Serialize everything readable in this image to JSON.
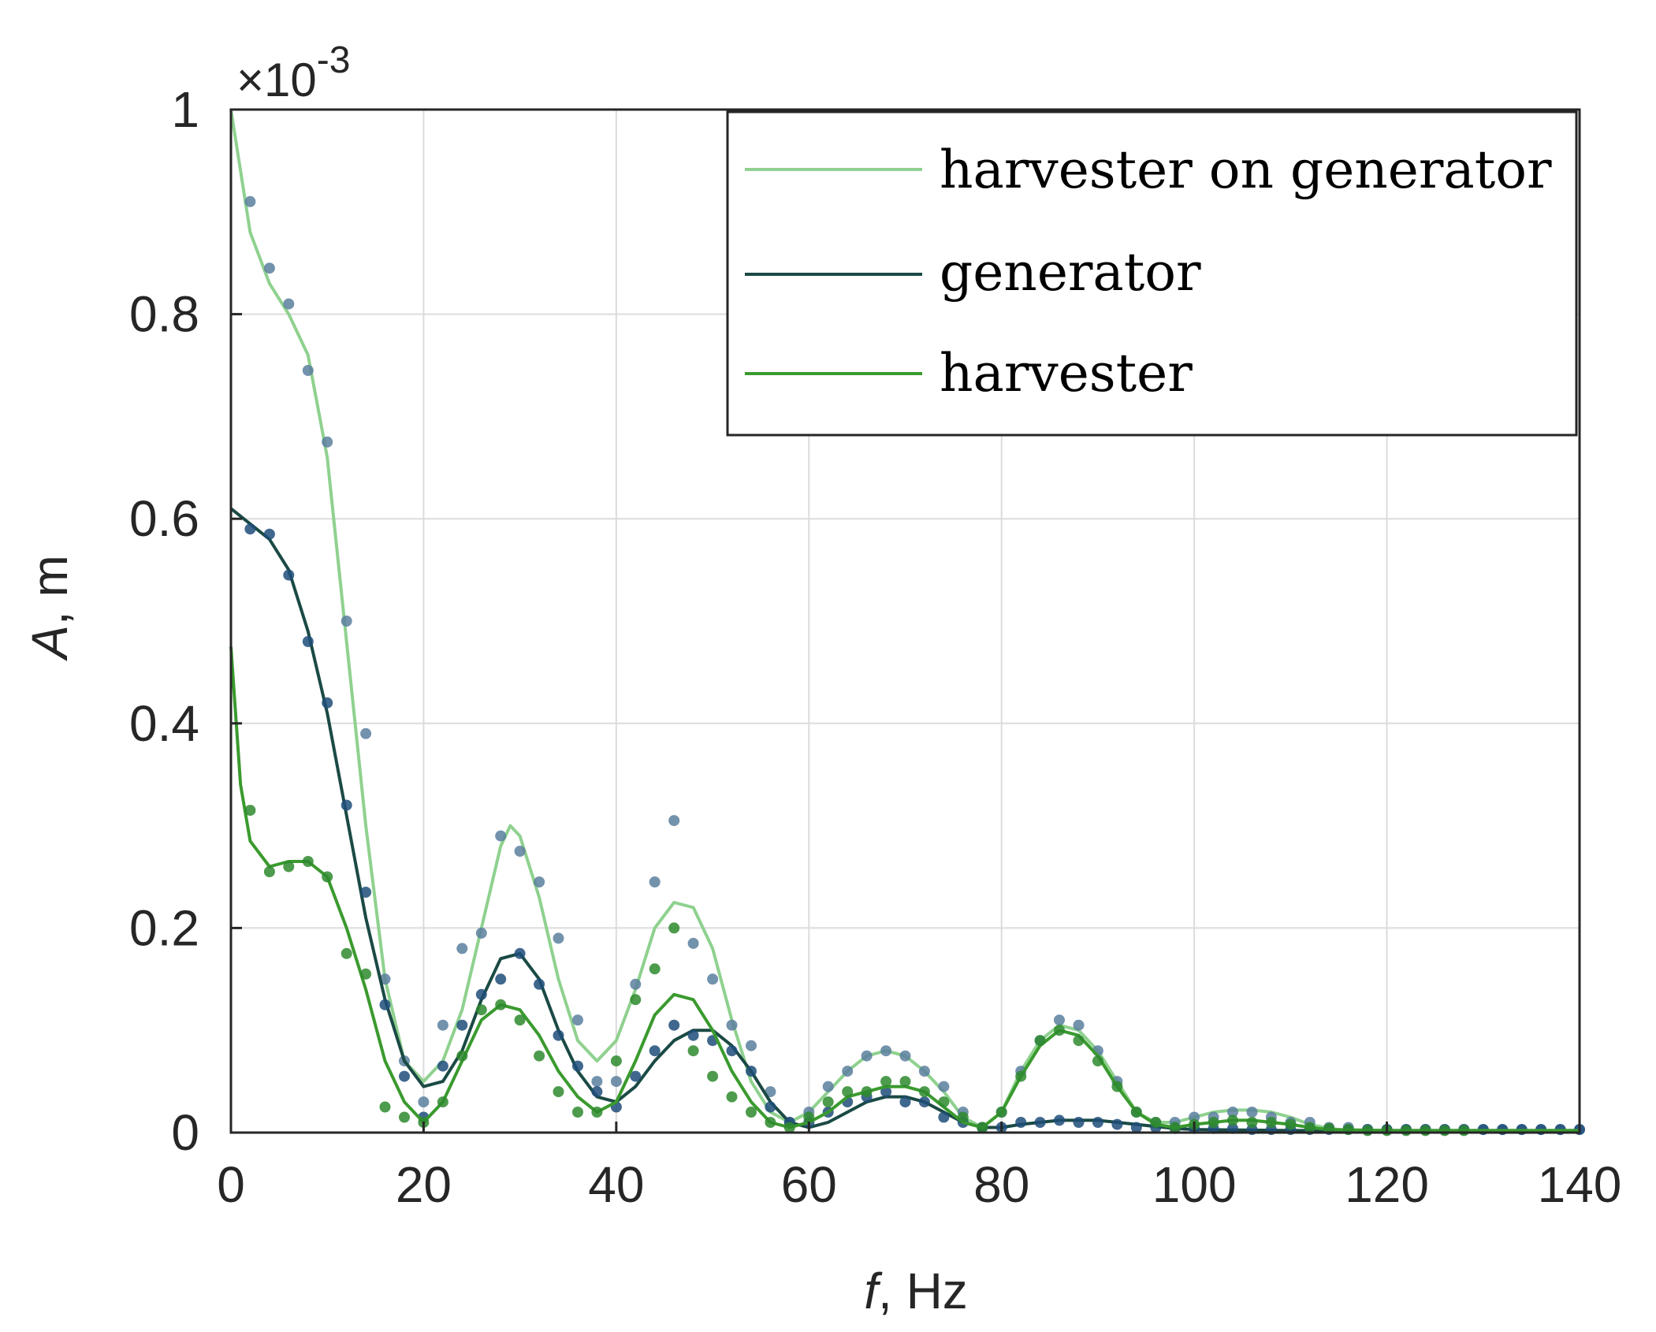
{
  "chart_data": {
    "type": "line",
    "title": "",
    "xlabel_italic": "f",
    "xlabel_rest": ", Hz",
    "ylabel_italic": "A",
    "ylabel_rest": ", m",
    "y_multiplier_prefix": "×10",
    "y_multiplier_exponent": "-3",
    "xlim": [
      0,
      140
    ],
    "ylim": [
      0,
      1
    ],
    "x_ticks": [
      0,
      20,
      40,
      60,
      80,
      100,
      120,
      140
    ],
    "y_ticks": [
      0,
      0.2,
      0.4,
      0.6,
      0.8,
      1
    ],
    "y_tick_labels": [
      "0",
      "0.2",
      "0.4",
      "0.6",
      "0.8",
      "1"
    ],
    "grid": true,
    "legend_position": "top-right",
    "series": [
      {
        "name": "harvester on generator",
        "color": "#8fd18f",
        "marker_color": "#5a7f9e",
        "curve": {
          "x": [
            0,
            2,
            4,
            6,
            8,
            10,
            12,
            14,
            16,
            18,
            20,
            22,
            24,
            26,
            28,
            29,
            30,
            32,
            34,
            36,
            38,
            40,
            42,
            44,
            46,
            48,
            50,
            52,
            54,
            56,
            58,
            60,
            62,
            64,
            66,
            68,
            70,
            72,
            74,
            76,
            78,
            80,
            82,
            84,
            86,
            88,
            90,
            92,
            94,
            96,
            98,
            100,
            102,
            104,
            106,
            108,
            110,
            112,
            114,
            116,
            120,
            130,
            140
          ],
          "y": [
            1.0,
            0.88,
            0.83,
            0.8,
            0.76,
            0.66,
            0.48,
            0.3,
            0.15,
            0.07,
            0.05,
            0.07,
            0.12,
            0.2,
            0.28,
            0.3,
            0.29,
            0.23,
            0.15,
            0.09,
            0.07,
            0.09,
            0.14,
            0.2,
            0.225,
            0.22,
            0.18,
            0.11,
            0.05,
            0.02,
            0.01,
            0.02,
            0.04,
            0.06,
            0.075,
            0.08,
            0.075,
            0.06,
            0.04,
            0.015,
            0.005,
            0.02,
            0.06,
            0.09,
            0.105,
            0.1,
            0.08,
            0.05,
            0.02,
            0.01,
            0.01,
            0.015,
            0.02,
            0.022,
            0.022,
            0.02,
            0.015,
            0.008,
            0.004,
            0.002,
            0.001,
            0.001,
            0.001
          ]
        },
        "markers": {
          "x": [
            2,
            4,
            6,
            8,
            10,
            12,
            14,
            16,
            18,
            20,
            22,
            24,
            26,
            28,
            30,
            32,
            34,
            36,
            38,
            40,
            42,
            44,
            46,
            48,
            50,
            52,
            54,
            56,
            58,
            60,
            62,
            64,
            66,
            68,
            70,
            72,
            74,
            76,
            78,
            80,
            82,
            84,
            86,
            88,
            90,
            92,
            94,
            96,
            98,
            100,
            102,
            104,
            106,
            108,
            110,
            112,
            114,
            116,
            118,
            120,
            122,
            124,
            126,
            128,
            130,
            132,
            134,
            136,
            138,
            140
          ],
          "y": [
            0.91,
            0.845,
            0.81,
            0.745,
            0.675,
            0.5,
            0.39,
            0.15,
            0.07,
            0.03,
            0.105,
            0.18,
            0.195,
            0.29,
            0.275,
            0.245,
            0.19,
            0.11,
            0.05,
            0.05,
            0.145,
            0.245,
            0.305,
            0.185,
            0.15,
            0.105,
            0.085,
            0.04,
            0.01,
            0.02,
            0.045,
            0.06,
            0.075,
            0.08,
            0.075,
            0.06,
            0.045,
            0.02,
            0.005,
            0.02,
            0.06,
            0.09,
            0.11,
            0.105,
            0.08,
            0.05,
            0.02,
            0.01,
            0.01,
            0.015,
            0.015,
            0.02,
            0.02,
            0.015,
            0.01,
            0.01,
            0.005,
            0.005,
            0.003,
            0.003,
            0.003,
            0.003,
            0.003,
            0.003,
            0.003,
            0.003,
            0.003,
            0.003,
            0.003,
            0.003
          ]
        }
      },
      {
        "name": "generator",
        "color": "#1b4a45",
        "marker_color": "#1f4d7a",
        "curve": {
          "x": [
            0,
            2,
            4,
            6,
            8,
            10,
            12,
            14,
            16,
            18,
            20,
            22,
            24,
            26,
            28,
            30,
            32,
            34,
            36,
            38,
            40,
            42,
            44,
            46,
            48,
            50,
            52,
            54,
            56,
            58,
            60,
            62,
            64,
            66,
            68,
            70,
            72,
            74,
            76,
            78,
            80,
            82,
            84,
            86,
            88,
            90,
            92,
            94,
            96,
            98,
            100,
            110,
            120,
            130,
            140
          ],
          "y": [
            0.61,
            0.595,
            0.58,
            0.55,
            0.49,
            0.41,
            0.31,
            0.21,
            0.13,
            0.07,
            0.045,
            0.05,
            0.08,
            0.13,
            0.17,
            0.175,
            0.15,
            0.1,
            0.06,
            0.035,
            0.03,
            0.045,
            0.07,
            0.09,
            0.1,
            0.1,
            0.085,
            0.06,
            0.03,
            0.01,
            0.005,
            0.01,
            0.02,
            0.03,
            0.035,
            0.035,
            0.03,
            0.02,
            0.01,
            0.005,
            0.005,
            0.008,
            0.01,
            0.012,
            0.012,
            0.012,
            0.01,
            0.008,
            0.006,
            0.004,
            0.003,
            0.002,
            0.002,
            0.002,
            0.002
          ]
        },
        "markers": {
          "x": [
            2,
            4,
            6,
            8,
            10,
            12,
            14,
            16,
            18,
            20,
            22,
            24,
            26,
            28,
            30,
            32,
            34,
            36,
            38,
            40,
            42,
            44,
            46,
            48,
            50,
            52,
            54,
            56,
            58,
            60,
            62,
            64,
            66,
            68,
            70,
            72,
            74,
            76,
            78,
            80,
            82,
            84,
            86,
            88,
            90,
            92,
            94,
            96,
            98,
            100,
            102,
            104,
            106,
            108,
            110,
            112,
            114,
            116,
            118,
            120,
            122,
            124,
            126,
            128,
            130,
            132,
            134,
            136,
            138,
            140
          ],
          "y": [
            0.59,
            0.585,
            0.545,
            0.48,
            0.42,
            0.32,
            0.235,
            0.125,
            0.055,
            0.015,
            0.065,
            0.105,
            0.135,
            0.15,
            0.175,
            0.145,
            0.095,
            0.065,
            0.04,
            0.025,
            0.055,
            0.08,
            0.105,
            0.095,
            0.09,
            0.08,
            0.06,
            0.025,
            0.01,
            0.01,
            0.02,
            0.03,
            0.035,
            0.04,
            0.03,
            0.03,
            0.015,
            0.01,
            0.005,
            0.005,
            0.01,
            0.01,
            0.012,
            0.01,
            0.01,
            0.008,
            0.005,
            0.005,
            0.004,
            0.004,
            0.004,
            0.004,
            0.003,
            0.003,
            0.003,
            0.003,
            0.003,
            0.003,
            0.003,
            0.003,
            0.003,
            0.003,
            0.003,
            0.003,
            0.003,
            0.003,
            0.003,
            0.003,
            0.003,
            0.003
          ]
        }
      },
      {
        "name": "harvester",
        "color": "#3a9a2e",
        "marker_color": "#2e8a2e",
        "curve": {
          "x": [
            0,
            1,
            2,
            4,
            6,
            8,
            10,
            12,
            14,
            16,
            18,
            20,
            22,
            24,
            26,
            28,
            30,
            32,
            34,
            36,
            38,
            40,
            42,
            44,
            46,
            48,
            50,
            52,
            54,
            56,
            58,
            60,
            62,
            64,
            66,
            68,
            70,
            72,
            74,
            76,
            78,
            80,
            82,
            84,
            86,
            88,
            90,
            92,
            94,
            96,
            98,
            100,
            102,
            104,
            106,
            108,
            110,
            112,
            114,
            120,
            130,
            140
          ],
          "y": [
            0.475,
            0.34,
            0.285,
            0.26,
            0.265,
            0.265,
            0.25,
            0.2,
            0.14,
            0.07,
            0.03,
            0.01,
            0.03,
            0.07,
            0.11,
            0.125,
            0.12,
            0.095,
            0.06,
            0.035,
            0.02,
            0.03,
            0.07,
            0.115,
            0.135,
            0.13,
            0.1,
            0.06,
            0.03,
            0.01,
            0.005,
            0.01,
            0.02,
            0.035,
            0.04,
            0.045,
            0.045,
            0.04,
            0.025,
            0.01,
            0.005,
            0.02,
            0.055,
            0.085,
            0.1,
            0.095,
            0.075,
            0.045,
            0.02,
            0.008,
            0.005,
            0.008,
            0.01,
            0.012,
            0.012,
            0.01,
            0.008,
            0.005,
            0.003,
            0.002,
            0.002,
            0.002
          ]
        },
        "markers": {
          "x": [
            2,
            4,
            6,
            8,
            10,
            12,
            14,
            16,
            18,
            20,
            22,
            24,
            26,
            28,
            30,
            32,
            34,
            36,
            38,
            40,
            42,
            44,
            46,
            48,
            50,
            52,
            54,
            56,
            58,
            60,
            62,
            64,
            66,
            68,
            70,
            72,
            74,
            76,
            78,
            80,
            82,
            84,
            86,
            88,
            90,
            92,
            94,
            96,
            98,
            100,
            102,
            104,
            106,
            108,
            110,
            112,
            114,
            116,
            118,
            120,
            122,
            124,
            126,
            128
          ],
          "y": [
            0.315,
            0.255,
            0.26,
            0.265,
            0.25,
            0.175,
            0.155,
            0.025,
            0.015,
            0.01,
            0.03,
            0.075,
            0.12,
            0.125,
            0.11,
            0.075,
            0.04,
            0.02,
            0.02,
            0.07,
            0.13,
            0.16,
            0.2,
            0.08,
            0.055,
            0.035,
            0.02,
            0.01,
            0.005,
            0.015,
            0.03,
            0.04,
            0.04,
            0.05,
            0.05,
            0.04,
            0.03,
            0.015,
            0.005,
            0.02,
            0.055,
            0.09,
            0.1,
            0.09,
            0.07,
            0.045,
            0.02,
            0.01,
            0.005,
            0.008,
            0.01,
            0.012,
            0.01,
            0.01,
            0.008,
            0.005,
            0.004,
            0.003,
            0.002,
            0.002,
            0.002,
            0.002,
            0.002,
            0.002
          ]
        }
      }
    ]
  }
}
